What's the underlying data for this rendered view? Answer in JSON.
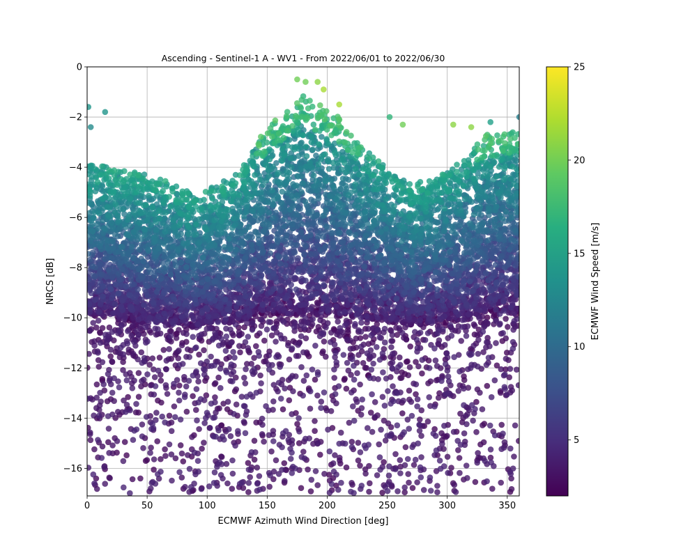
{
  "chart_data": {
    "type": "scatter",
    "title": "Ascending - Sentinel-1 A - WV1 - From 2022/06/01 to 2022/06/30",
    "xlabel": "ECMWF Azimuth Wind Direction [deg]",
    "ylabel": "NRCS [dB]",
    "xlim": [
      0,
      360
    ],
    "ylim": [
      -17.1,
      0
    ],
    "xticks": [
      0,
      50,
      100,
      150,
      200,
      250,
      300,
      350
    ],
    "yticks": [
      -16,
      -14,
      -12,
      -10,
      -8,
      -6,
      -4,
      -2,
      0
    ],
    "grid": true,
    "colorbar": {
      "label": "ECMWF Wind Speed [m/s]",
      "min": 2,
      "max": 25,
      "ticks": [
        5,
        10,
        15,
        20,
        25
      ],
      "colormap": "viridis"
    },
    "marker_alpha": 0.8,
    "note_on_points": "thousands of points; values described by the per-direction envelope below and generated deterministically",
    "cloud": {
      "x": [
        0,
        30,
        60,
        90,
        120,
        150,
        180,
        210,
        240,
        270,
        300,
        330,
        360
      ],
      "top_nrcs": [
        -3.7,
        -3.8,
        -4.2,
        -4.9,
        -4.2,
        -2.2,
        -0.9,
        -1.8,
        -3.4,
        -4.5,
        -3.9,
        -2.5,
        -2.2
      ],
      "dense_bottom_nrcs": [
        -10.0,
        -10.2,
        -10.4,
        -10.5,
        -10.3,
        -10.0,
        -10.0,
        -10.1,
        -10.2,
        -10.4,
        -10.3,
        -10.1,
        -10.0
      ],
      "sparse_bottom_nrcs": -17.0
    },
    "highlight_points": [
      {
        "x": 1,
        "y": -1.6,
        "v": 14
      },
      {
        "x": 3,
        "y": -2.4,
        "v": 13
      },
      {
        "x": 15,
        "y": -1.8,
        "v": 14
      },
      {
        "x": 175,
        "y": -0.5,
        "v": 20
      },
      {
        "x": 182,
        "y": -0.6,
        "v": 20
      },
      {
        "x": 192,
        "y": -0.6,
        "v": 21
      },
      {
        "x": 197,
        "y": -0.9,
        "v": 22
      },
      {
        "x": 210,
        "y": -1.5,
        "v": 22
      },
      {
        "x": 252,
        "y": -2.0,
        "v": 17
      },
      {
        "x": 263,
        "y": -2.3,
        "v": 20
      },
      {
        "x": 305,
        "y": -2.3,
        "v": 21
      },
      {
        "x": 320,
        "y": -2.4,
        "v": 21
      },
      {
        "x": 336,
        "y": -2.2,
        "v": 15
      },
      {
        "x": 360,
        "y": -2.0,
        "v": 12
      }
    ]
  }
}
